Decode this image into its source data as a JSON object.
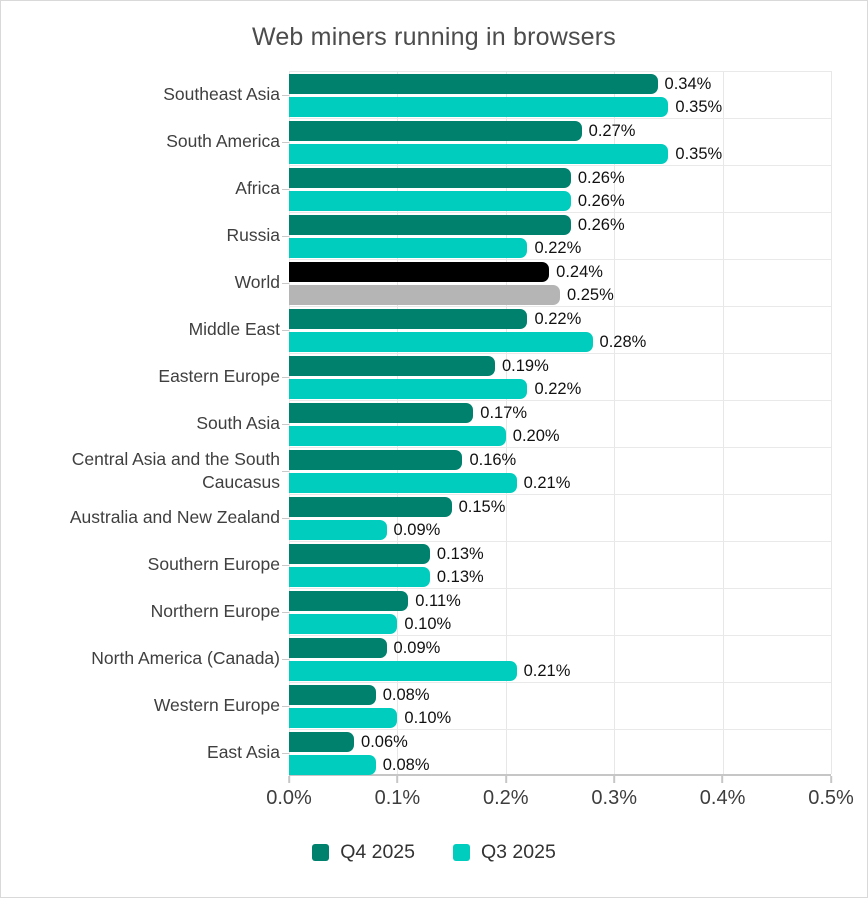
{
  "chart_data": {
    "type": "bar",
    "orientation": "horizontal",
    "title": "Web miners running in browsers",
    "categories": [
      "Southeast Asia",
      "South America",
      "Africa",
      "Russia",
      "World",
      "Middle East",
      "Eastern Europe",
      "South Asia",
      "Central Asia and the South Caucasus",
      "Australia and New Zealand",
      "Southern Europe",
      "Northern Europe",
      "North America (Canada)",
      "Western Europe",
      "East Asia"
    ],
    "series": [
      {
        "name": "Q4 2025",
        "color": "#00816e",
        "values": [
          0.34,
          0.27,
          0.26,
          0.26,
          0.24,
          0.22,
          0.19,
          0.17,
          0.16,
          0.15,
          0.13,
          0.11,
          0.09,
          0.08,
          0.06
        ],
        "labels": [
          "0.34%",
          "0.27%",
          "0.26%",
          "0.26%",
          "0.24%",
          "0.22%",
          "0.19%",
          "0.17%",
          "0.16%",
          "0.15%",
          "0.13%",
          "0.11%",
          "0.09%",
          "0.08%",
          "0.06%"
        ]
      },
      {
        "name": "Q3 2025",
        "color": "#00cdbd",
        "values": [
          0.35,
          0.35,
          0.26,
          0.22,
          0.25,
          0.28,
          0.22,
          0.2,
          0.21,
          0.09,
          0.13,
          0.1,
          0.21,
          0.1,
          0.08
        ],
        "labels": [
          "0.35%",
          "0.35%",
          "0.26%",
          "0.22%",
          "0.25%",
          "0.28%",
          "0.22%",
          "0.20%",
          "0.21%",
          "0.09%",
          "0.13%",
          "0.10%",
          "0.21%",
          "0.10%",
          "0.08%"
        ]
      }
    ],
    "highlight": {
      "category": "World",
      "series_colors": [
        "#000000",
        "#b5b5b5"
      ]
    },
    "x_ticks": [
      "0.0%",
      "0.1%",
      "0.2%",
      "0.3%",
      "0.4%",
      "0.5%"
    ],
    "xlim": [
      0,
      0.5
    ],
    "grid": true,
    "legend_position": "bottom"
  }
}
